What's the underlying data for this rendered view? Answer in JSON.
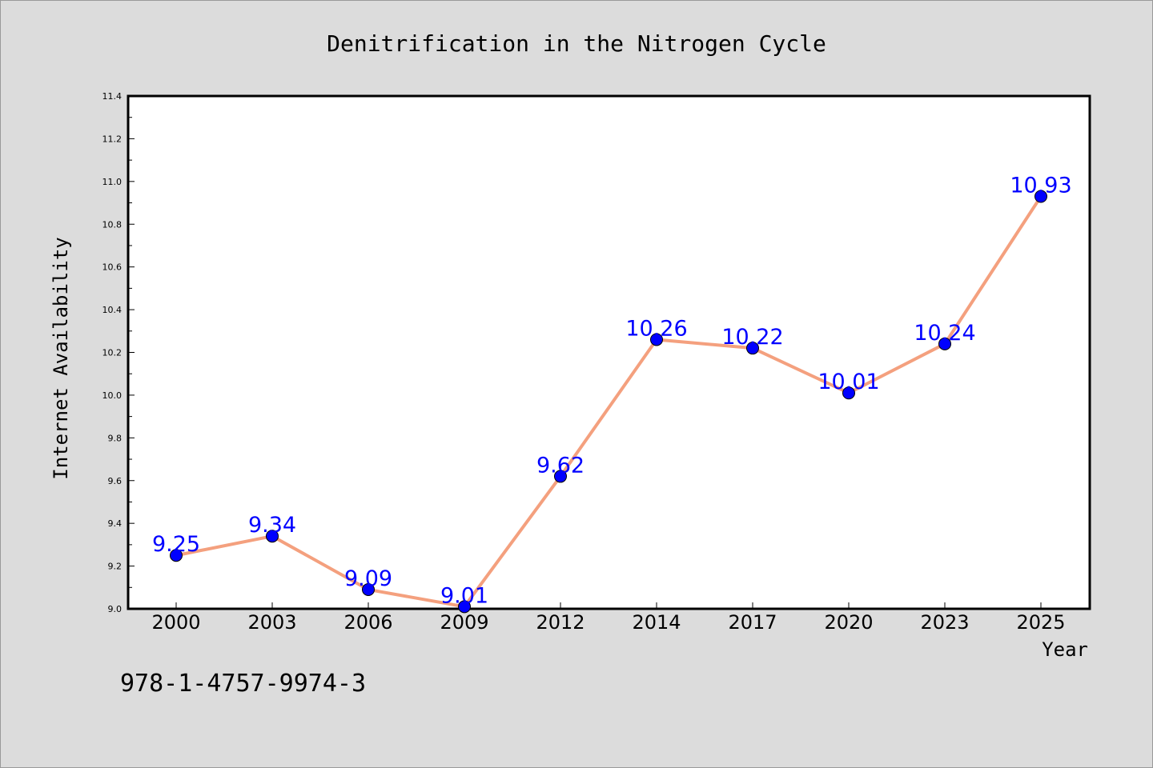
{
  "chart_data": {
    "type": "line",
    "title": "Denitrification in the Nitrogen Cycle",
    "xlabel": "Year",
    "ylabel": "Internet Availability",
    "categories": [
      "2000",
      "2003",
      "2006",
      "2009",
      "2012",
      "2014",
      "2017",
      "2020",
      "2023",
      "2025"
    ],
    "series": [
      {
        "values": [
          9.25,
          9.34,
          9.09,
          9.01,
          9.62,
          10.26,
          10.22,
          10.01,
          10.24,
          10.93
        ],
        "value_labels": [
          "9.25",
          "9.34",
          "9.09",
          "9.01",
          "9.62",
          "10.26",
          "10.22",
          "10.01",
          "10.24",
          "10.93"
        ]
      }
    ],
    "ylim": [
      9.0,
      11.4
    ],
    "yticks": [
      "9.0",
      "9.2",
      "9.4",
      "9.6",
      "9.8",
      "10.0",
      "10.2",
      "10.4",
      "10.6",
      "10.8",
      "11.0",
      "11.2",
      "11.4"
    ],
    "grid": false,
    "legend": "none",
    "colors": {
      "line": "#f4a07e",
      "marker": "#0000ff",
      "label": "#0000ff",
      "background": "#dcdcdc",
      "plot_background": "#ffffff"
    }
  },
  "annotation": {
    "text": "978-1-4757-9974-3"
  }
}
